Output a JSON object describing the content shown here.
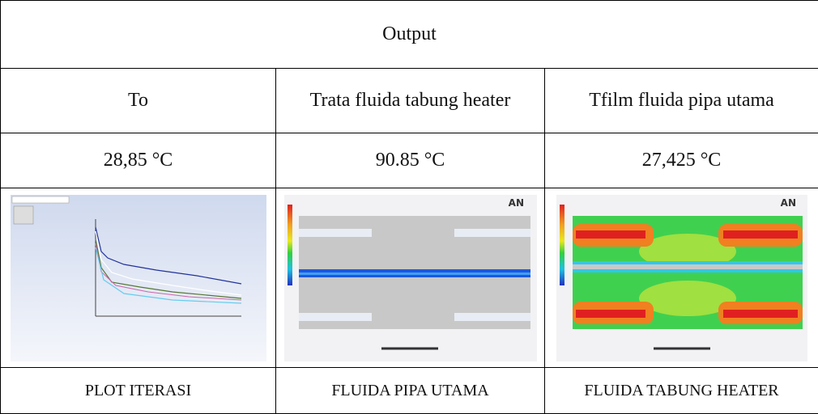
{
  "table": {
    "title": "Output",
    "header": [
      "To",
      "Trata fluida tabung heater",
      "Tfilm fluida pipa utama"
    ],
    "values": [
      "28,85 °C",
      "90.85 °C",
      "27,425 °C"
    ],
    "captions": [
      "PLOT ITERASI",
      "FLUIDA PIPA UTAMA",
      "FLUIDA TABUNG HEATER"
    ]
  }
}
